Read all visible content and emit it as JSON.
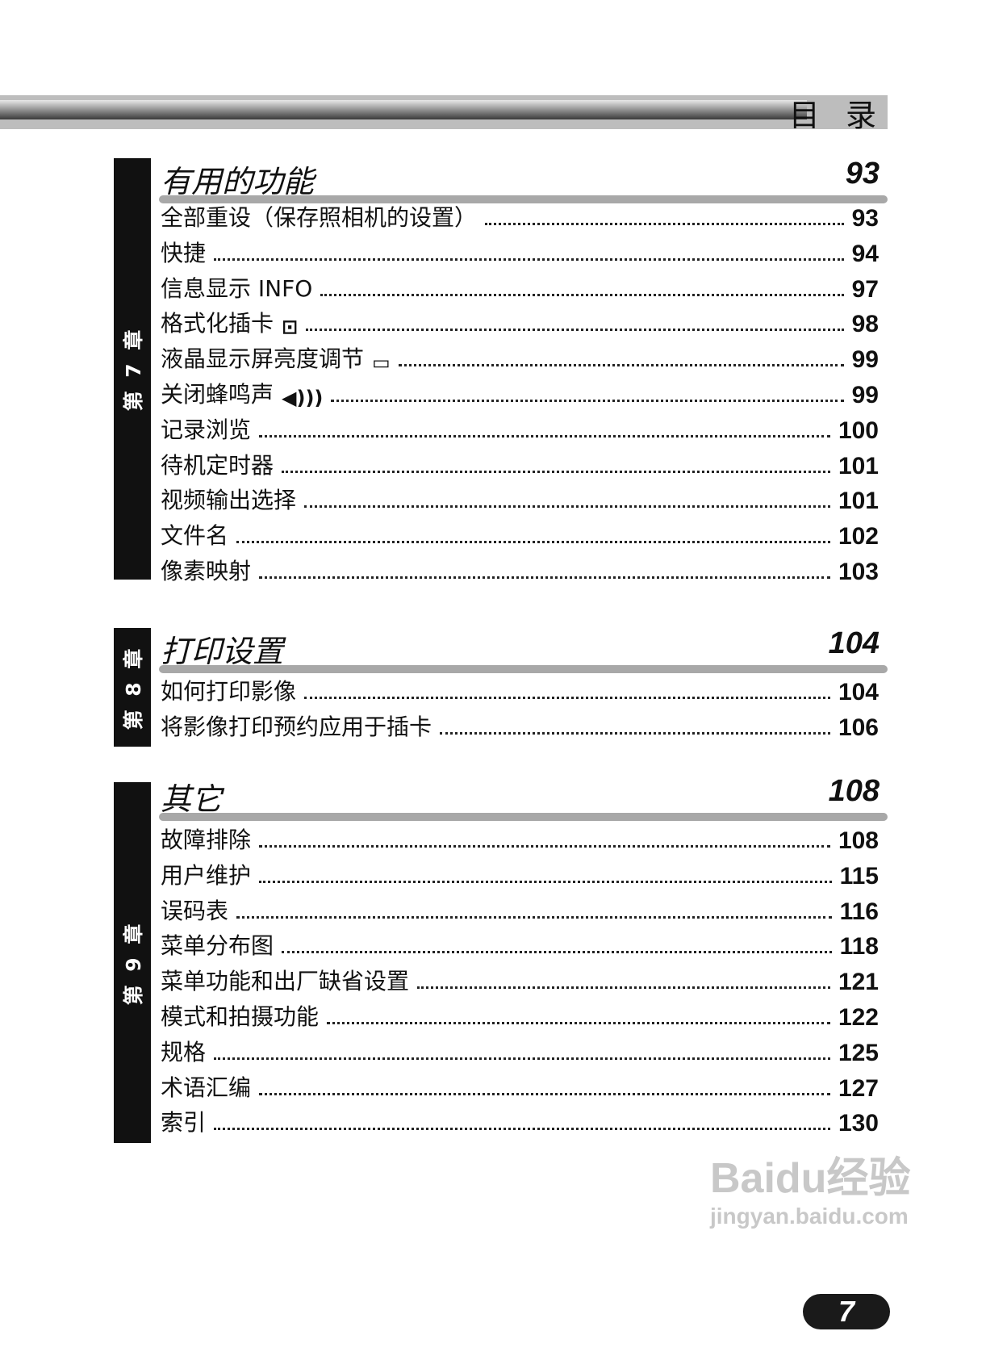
{
  "header": {
    "title": "目 录"
  },
  "chapters": [
    {
      "label": "第 7 章",
      "title": "有用的功能",
      "page": "93",
      "items": [
        {
          "label": "全部重设（保存照相机的设置）",
          "page": "93"
        },
        {
          "label": "快捷",
          "page": "94"
        },
        {
          "label": "信息显示 INFO",
          "page": "97"
        },
        {
          "label": "格式化插卡",
          "icon": "card-format-icon",
          "page": "98"
        },
        {
          "label": "液晶显示屏亮度调节",
          "icon": "lcd-brightness-icon",
          "page": "99"
        },
        {
          "label": "关闭蜂鸣声",
          "icon": "beep-icon",
          "page": "99"
        },
        {
          "label": "记录浏览",
          "page": "100"
        },
        {
          "label": "待机定时器",
          "page": "101"
        },
        {
          "label": "视频输出选择",
          "page": "101"
        },
        {
          "label": "文件名",
          "page": "102"
        },
        {
          "label": "像素映射",
          "page": "103"
        }
      ]
    },
    {
      "label": "第 8 章",
      "title": "打印设置",
      "page": "104",
      "items": [
        {
          "label": "如何打印影像",
          "page": "104"
        },
        {
          "label": "将影像打印预约应用于插卡",
          "page": "106"
        }
      ]
    },
    {
      "label": "第 9 章",
      "title": "其它",
      "page": "108",
      "items": [
        {
          "label": "故障排除",
          "page": "108"
        },
        {
          "label": "用户维护",
          "page": "115"
        },
        {
          "label": "误码表",
          "page": "116"
        },
        {
          "label": "菜单分布图",
          "page": "118"
        },
        {
          "label": "菜单功能和出厂缺省设置",
          "page": "121"
        },
        {
          "label": "模式和拍摄功能",
          "page": "122"
        },
        {
          "label": "规格",
          "page": "125"
        },
        {
          "label": "术语汇编",
          "page": "127"
        },
        {
          "label": "索引",
          "page": "130"
        }
      ]
    }
  ],
  "footer": {
    "page_number": "7"
  },
  "watermark": {
    "brand": "Baidu经验",
    "url": "jingyan.baidu.com"
  }
}
